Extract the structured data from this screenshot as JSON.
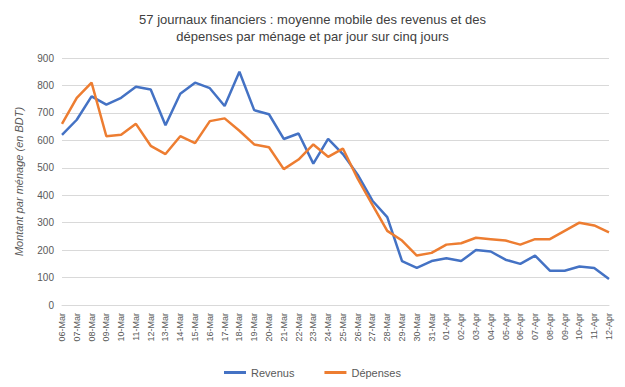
{
  "chart_data": {
    "type": "line",
    "title": "57 journaux financiers : moyenne mobile des revenus et des\ndépenses par ménage et par jour sur cinq jours",
    "y_label": "Montant par ménage (en BDT)",
    "categories": [
      "06-Mar",
      "07-Mar",
      "08-Mar",
      "09-Mar",
      "10-Mar",
      "11-Mar",
      "12-Mar",
      "13-Mar",
      "14-Mar",
      "15-Mar",
      "16-Mar",
      "17-Mar",
      "18-Mar",
      "19-Mar",
      "20-Mar",
      "21-Mar",
      "22-Mar",
      "23-Mar",
      "24-Mar",
      "25-Mar",
      "26-Mar",
      "27-Mar",
      "28-Mar",
      "29-Mar",
      "30-Mar",
      "31-Mar",
      "01-Apr",
      "02-Apr",
      "03-Apr",
      "04-Apr",
      "05-Apr",
      "06-Apr",
      "07-Apr",
      "08-Apr",
      "09-Apr",
      "10-Apr",
      "11-Apr",
      "12-Apr"
    ],
    "series": [
      {
        "name": "Revenus",
        "color": "#4472c4",
        "values": [
          620,
          675,
          760,
          730,
          755,
          795,
          785,
          655,
          770,
          810,
          790,
          725,
          850,
          710,
          695,
          605,
          625,
          515,
          605,
          550,
          475,
          380,
          320,
          160,
          135,
          160,
          170,
          160,
          200,
          195,
          165,
          150,
          180,
          125,
          125,
          140,
          135,
          95
        ]
      },
      {
        "name": "Dépenses",
        "color": "#ed7d31",
        "values": [
          660,
          755,
          810,
          615,
          620,
          660,
          580,
          550,
          615,
          590,
          670,
          680,
          635,
          585,
          575,
          495,
          530,
          585,
          540,
          570,
          460,
          365,
          270,
          235,
          180,
          190,
          220,
          225,
          245,
          240,
          235,
          220,
          240,
          240,
          270,
          300,
          290,
          265
        ]
      }
    ],
    "ylim": [
      0,
      900
    ],
    "yticks": [
      0,
      100,
      200,
      300,
      400,
      500,
      600,
      700,
      800,
      900
    ],
    "grid": true,
    "legend": "bottom"
  }
}
